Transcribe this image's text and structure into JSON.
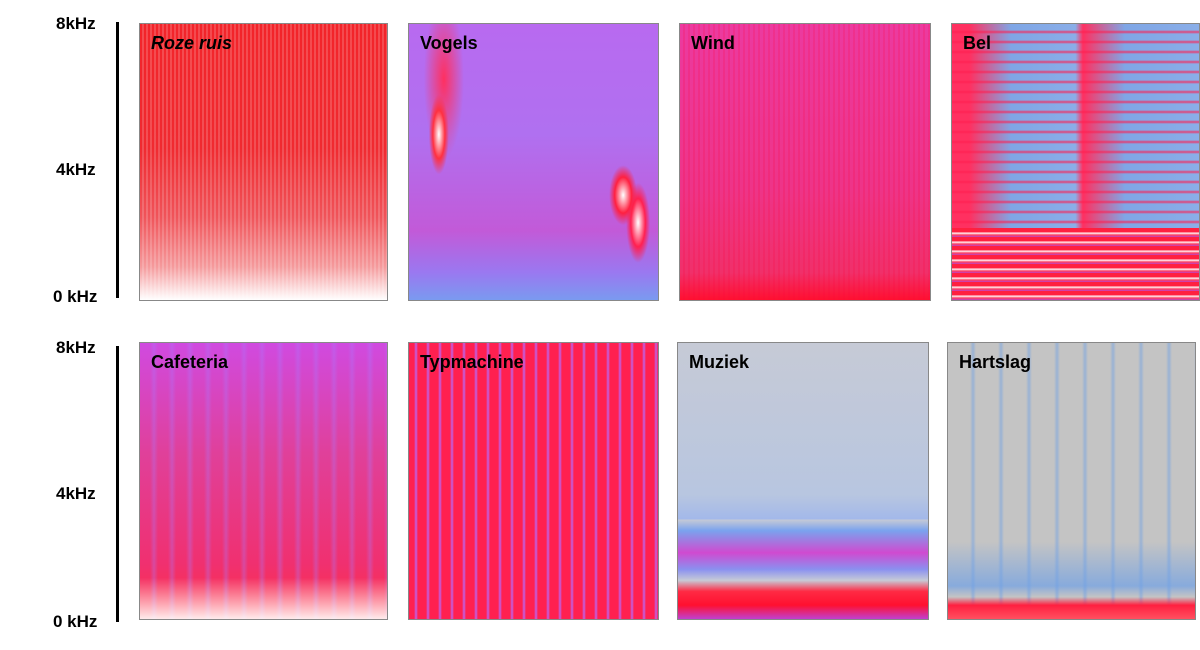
{
  "axis": {
    "top_label": "8kHz",
    "mid_label": "4kHz",
    "bottom_label": "0 kHz"
  },
  "panels": [
    {
      "title": "Roze ruis",
      "italic": true
    },
    {
      "title": "Vogels"
    },
    {
      "title": "Wind"
    },
    {
      "title": "Bel"
    },
    {
      "title": "Cafeteria"
    },
    {
      "title": "Typmachine"
    },
    {
      "title": "Muziek"
    },
    {
      "title": "Hartslag"
    }
  ]
}
